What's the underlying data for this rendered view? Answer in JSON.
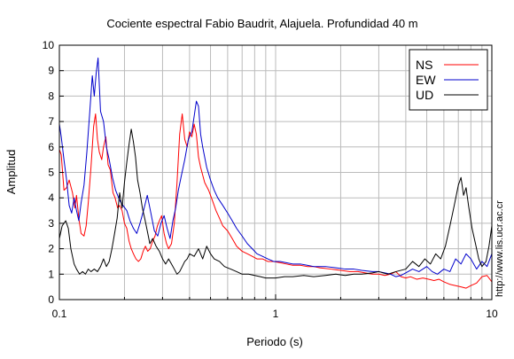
{
  "chart_data": {
    "type": "line",
    "title": "Cociente espectral Fabio Baudrit, Alajuela. Profundidad 40 m",
    "xlabel": "Periodo (s)",
    "ylabel": "Amplitud",
    "xscale": "log",
    "xlim": [
      0.1,
      10
    ],
    "ylim": [
      0,
      10
    ],
    "grid": true,
    "legend_position": "top-right",
    "x_tick_labels": [
      "0.1",
      "1",
      "10"
    ],
    "y_tick_labels": [
      "0",
      "1",
      "2",
      "3",
      "4",
      "5",
      "6",
      "7",
      "8",
      "9",
      "10"
    ],
    "side_note": "http://www.lis.ucr.ac.cr",
    "series": [
      {
        "name": "NS",
        "color": "#ff0000",
        "points": [
          [
            0.1,
            5.9
          ],
          [
            0.102,
            5.7
          ],
          [
            0.105,
            4.3
          ],
          [
            0.108,
            4.4
          ],
          [
            0.111,
            4.7
          ],
          [
            0.115,
            4.2
          ],
          [
            0.118,
            3.6
          ],
          [
            0.12,
            4.1
          ],
          [
            0.123,
            3.2
          ],
          [
            0.126,
            2.6
          ],
          [
            0.13,
            2.5
          ],
          [
            0.133,
            2.9
          ],
          [
            0.136,
            3.8
          ],
          [
            0.14,
            5.2
          ],
          [
            0.144,
            6.8
          ],
          [
            0.147,
            7.3
          ],
          [
            0.15,
            6.3
          ],
          [
            0.153,
            5.8
          ],
          [
            0.157,
            5.5
          ],
          [
            0.16,
            6.0
          ],
          [
            0.164,
            6.4
          ],
          [
            0.168,
            5.3
          ],
          [
            0.172,
            5.1
          ],
          [
            0.177,
            4.2
          ],
          [
            0.181,
            4.0
          ],
          [
            0.186,
            3.6
          ],
          [
            0.19,
            3.7
          ],
          [
            0.195,
            3.5
          ],
          [
            0.2,
            3.0
          ],
          [
            0.205,
            2.8
          ],
          [
            0.21,
            2.3
          ],
          [
            0.215,
            2.0
          ],
          [
            0.22,
            1.8
          ],
          [
            0.226,
            1.6
          ],
          [
            0.232,
            1.5
          ],
          [
            0.238,
            1.6
          ],
          [
            0.244,
            1.9
          ],
          [
            0.25,
            2.1
          ],
          [
            0.256,
            1.9
          ],
          [
            0.263,
            2.0
          ],
          [
            0.27,
            2.3
          ],
          [
            0.277,
            2.5
          ],
          [
            0.284,
            2.9
          ],
          [
            0.29,
            3.1
          ],
          [
            0.297,
            3.3
          ],
          [
            0.305,
            2.6
          ],
          [
            0.313,
            2.2
          ],
          [
            0.32,
            2.0
          ],
          [
            0.33,
            2.2
          ],
          [
            0.34,
            3.0
          ],
          [
            0.35,
            4.6
          ],
          [
            0.36,
            6.5
          ],
          [
            0.37,
            7.3
          ],
          [
            0.38,
            6.3
          ],
          [
            0.39,
            6.0
          ],
          [
            0.4,
            6.6
          ],
          [
            0.41,
            6.4
          ],
          [
            0.42,
            6.9
          ],
          [
            0.43,
            6.5
          ],
          [
            0.44,
            5.6
          ],
          [
            0.45,
            5.2
          ],
          [
            0.47,
            4.6
          ],
          [
            0.49,
            4.3
          ],
          [
            0.51,
            3.9
          ],
          [
            0.53,
            3.5
          ],
          [
            0.55,
            3.2
          ],
          [
            0.57,
            2.9
          ],
          [
            0.6,
            2.7
          ],
          [
            0.63,
            2.4
          ],
          [
            0.66,
            2.1
          ],
          [
            0.7,
            1.9
          ],
          [
            0.74,
            1.8
          ],
          [
            0.78,
            1.7
          ],
          [
            0.82,
            1.6
          ],
          [
            0.87,
            1.6
          ],
          [
            0.92,
            1.5
          ],
          [
            0.98,
            1.5
          ],
          [
            1.05,
            1.45
          ],
          [
            1.12,
            1.4
          ],
          [
            1.2,
            1.35
          ],
          [
            1.3,
            1.35
          ],
          [
            1.4,
            1.3
          ],
          [
            1.5,
            1.3
          ],
          [
            1.6,
            1.25
          ],
          [
            1.8,
            1.2
          ],
          [
            2.0,
            1.15
          ],
          [
            2.2,
            1.1
          ],
          [
            2.4,
            1.1
          ],
          [
            2.6,
            1.05
          ],
          [
            2.8,
            1.0
          ],
          [
            3.0,
            1.0
          ],
          [
            3.2,
            0.95
          ],
          [
            3.4,
            1.0
          ],
          [
            3.6,
            1.1
          ],
          [
            3.8,
            0.9
          ],
          [
            4.0,
            0.85
          ],
          [
            4.2,
            0.9
          ],
          [
            4.5,
            0.8
          ],
          [
            4.8,
            0.85
          ],
          [
            5.1,
            0.8
          ],
          [
            5.4,
            0.75
          ],
          [
            5.7,
            0.8
          ],
          [
            6.0,
            0.7
          ],
          [
            6.4,
            0.6
          ],
          [
            6.8,
            0.55
          ],
          [
            7.2,
            0.5
          ],
          [
            7.6,
            0.45
          ],
          [
            8.0,
            0.55
          ],
          [
            8.5,
            0.65
          ],
          [
            9.0,
            0.9
          ],
          [
            9.5,
            0.95
          ],
          [
            10.0,
            0.7
          ]
        ]
      },
      {
        "name": "EW",
        "color": "#0000cc",
        "points": [
          [
            0.1,
            6.9
          ],
          [
            0.102,
            6.4
          ],
          [
            0.105,
            5.5
          ],
          [
            0.108,
            4.7
          ],
          [
            0.111,
            3.7
          ],
          [
            0.114,
            3.4
          ],
          [
            0.117,
            4.0
          ],
          [
            0.12,
            3.5
          ],
          [
            0.123,
            3.1
          ],
          [
            0.126,
            3.8
          ],
          [
            0.13,
            4.5
          ],
          [
            0.134,
            5.8
          ],
          [
            0.138,
            7.3
          ],
          [
            0.142,
            8.8
          ],
          [
            0.145,
            8.0
          ],
          [
            0.148,
            8.9
          ],
          [
            0.151,
            9.5
          ],
          [
            0.155,
            7.4
          ],
          [
            0.16,
            7.0
          ],
          [
            0.165,
            6.0
          ],
          [
            0.17,
            5.5
          ],
          [
            0.176,
            4.8
          ],
          [
            0.182,
            4.3
          ],
          [
            0.19,
            3.9
          ],
          [
            0.197,
            3.7
          ],
          [
            0.205,
            3.5
          ],
          [
            0.212,
            3.1
          ],
          [
            0.22,
            2.8
          ],
          [
            0.228,
            2.6
          ],
          [
            0.236,
            3.0
          ],
          [
            0.245,
            3.5
          ],
          [
            0.255,
            4.1
          ],
          [
            0.265,
            3.4
          ],
          [
            0.275,
            2.7
          ],
          [
            0.285,
            2.5
          ],
          [
            0.295,
            3.0
          ],
          [
            0.305,
            3.3
          ],
          [
            0.315,
            2.8
          ],
          [
            0.325,
            2.4
          ],
          [
            0.335,
            3.1
          ],
          [
            0.345,
            3.6
          ],
          [
            0.355,
            4.3
          ],
          [
            0.365,
            4.8
          ],
          [
            0.38,
            5.5
          ],
          [
            0.395,
            6.3
          ],
          [
            0.41,
            6.6
          ],
          [
            0.42,
            7.2
          ],
          [
            0.43,
            7.8
          ],
          [
            0.44,
            7.6
          ],
          [
            0.45,
            6.5
          ],
          [
            0.46,
            6.0
          ],
          [
            0.48,
            5.2
          ],
          [
            0.5,
            4.7
          ],
          [
            0.52,
            4.3
          ],
          [
            0.54,
            4.0
          ],
          [
            0.57,
            3.7
          ],
          [
            0.6,
            3.4
          ],
          [
            0.63,
            3.1
          ],
          [
            0.66,
            2.8
          ],
          [
            0.7,
            2.5
          ],
          [
            0.74,
            2.2
          ],
          [
            0.78,
            2.0
          ],
          [
            0.82,
            1.8
          ],
          [
            0.87,
            1.7
          ],
          [
            0.92,
            1.6
          ],
          [
            0.98,
            1.5
          ],
          [
            1.05,
            1.5
          ],
          [
            1.12,
            1.45
          ],
          [
            1.2,
            1.4
          ],
          [
            1.3,
            1.4
          ],
          [
            1.4,
            1.35
          ],
          [
            1.5,
            1.3
          ],
          [
            1.7,
            1.3
          ],
          [
            1.9,
            1.25
          ],
          [
            2.1,
            1.2
          ],
          [
            2.3,
            1.2
          ],
          [
            2.5,
            1.15
          ],
          [
            2.8,
            1.1
          ],
          [
            3.0,
            1.1
          ],
          [
            3.2,
            1.05
          ],
          [
            3.4,
            1.0
          ],
          [
            3.6,
            0.9
          ],
          [
            3.8,
            0.95
          ],
          [
            4.0,
            1.05
          ],
          [
            4.3,
            1.2
          ],
          [
            4.6,
            1.1
          ],
          [
            5.0,
            1.3
          ],
          [
            5.3,
            1.1
          ],
          [
            5.6,
            1.0
          ],
          [
            6.0,
            1.2
          ],
          [
            6.4,
            1.1
          ],
          [
            6.8,
            1.6
          ],
          [
            7.2,
            1.4
          ],
          [
            7.6,
            1.8
          ],
          [
            8.0,
            1.6
          ],
          [
            8.5,
            1.2
          ],
          [
            9.0,
            1.5
          ],
          [
            9.5,
            1.3
          ],
          [
            10.0,
            1.8
          ]
        ]
      },
      {
        "name": "UD",
        "color": "#000000",
        "points": [
          [
            0.1,
            2.4
          ],
          [
            0.103,
            2.9
          ],
          [
            0.107,
            3.1
          ],
          [
            0.11,
            2.8
          ],
          [
            0.113,
            2.0
          ],
          [
            0.117,
            1.4
          ],
          [
            0.12,
            1.2
          ],
          [
            0.124,
            1.0
          ],
          [
            0.128,
            1.1
          ],
          [
            0.132,
            1.0
          ],
          [
            0.136,
            1.2
          ],
          [
            0.14,
            1.1
          ],
          [
            0.145,
            1.2
          ],
          [
            0.15,
            1.1
          ],
          [
            0.155,
            1.3
          ],
          [
            0.16,
            1.6
          ],
          [
            0.165,
            1.3
          ],
          [
            0.17,
            1.5
          ],
          [
            0.175,
            2.0
          ],
          [
            0.18,
            2.6
          ],
          [
            0.185,
            3.2
          ],
          [
            0.19,
            4.2
          ],
          [
            0.195,
            3.6
          ],
          [
            0.2,
            4.6
          ],
          [
            0.205,
            5.4
          ],
          [
            0.21,
            6.1
          ],
          [
            0.215,
            6.7
          ],
          [
            0.22,
            6.2
          ],
          [
            0.225,
            5.6
          ],
          [
            0.23,
            4.7
          ],
          [
            0.236,
            4.2
          ],
          [
            0.242,
            3.6
          ],
          [
            0.248,
            3.2
          ],
          [
            0.255,
            2.7
          ],
          [
            0.262,
            2.2
          ],
          [
            0.27,
            2.4
          ],
          [
            0.28,
            2.1
          ],
          [
            0.29,
            1.9
          ],
          [
            0.3,
            1.6
          ],
          [
            0.31,
            1.4
          ],
          [
            0.32,
            1.6
          ],
          [
            0.33,
            1.4
          ],
          [
            0.34,
            1.2
          ],
          [
            0.35,
            1.0
          ],
          [
            0.36,
            1.1
          ],
          [
            0.37,
            1.3
          ],
          [
            0.38,
            1.5
          ],
          [
            0.39,
            1.6
          ],
          [
            0.4,
            1.8
          ],
          [
            0.42,
            1.7
          ],
          [
            0.44,
            2.0
          ],
          [
            0.46,
            1.6
          ],
          [
            0.48,
            2.1
          ],
          [
            0.5,
            1.8
          ],
          [
            0.52,
            1.6
          ],
          [
            0.55,
            1.5
          ],
          [
            0.58,
            1.3
          ],
          [
            0.62,
            1.2
          ],
          [
            0.66,
            1.1
          ],
          [
            0.7,
            1.0
          ],
          [
            0.75,
            1.0
          ],
          [
            0.8,
            0.95
          ],
          [
            0.85,
            0.9
          ],
          [
            0.9,
            0.85
          ],
          [
            1.0,
            0.85
          ],
          [
            1.1,
            0.9
          ],
          [
            1.2,
            0.9
          ],
          [
            1.35,
            0.95
          ],
          [
            1.5,
            0.9
          ],
          [
            1.7,
            0.95
          ],
          [
            1.9,
            1.0
          ],
          [
            2.1,
            0.95
          ],
          [
            2.3,
            1.0
          ],
          [
            2.5,
            1.0
          ],
          [
            2.8,
            1.05
          ],
          [
            3.0,
            1.1
          ],
          [
            3.3,
            1.0
          ],
          [
            3.6,
            1.1
          ],
          [
            4.0,
            1.2
          ],
          [
            4.3,
            1.5
          ],
          [
            4.6,
            1.3
          ],
          [
            4.9,
            1.6
          ],
          [
            5.2,
            1.4
          ],
          [
            5.5,
            1.8
          ],
          [
            5.8,
            1.6
          ],
          [
            6.1,
            2.1
          ],
          [
            6.4,
            2.9
          ],
          [
            6.7,
            3.7
          ],
          [
            7.0,
            4.5
          ],
          [
            7.2,
            4.8
          ],
          [
            7.4,
            4.1
          ],
          [
            7.6,
            4.4
          ],
          [
            7.8,
            3.7
          ],
          [
            8.1,
            2.8
          ],
          [
            8.4,
            2.2
          ],
          [
            8.7,
            1.6
          ],
          [
            9.0,
            1.3
          ],
          [
            9.4,
            1.5
          ],
          [
            9.7,
            2.1
          ],
          [
            10.0,
            2.9
          ]
        ]
      }
    ]
  }
}
